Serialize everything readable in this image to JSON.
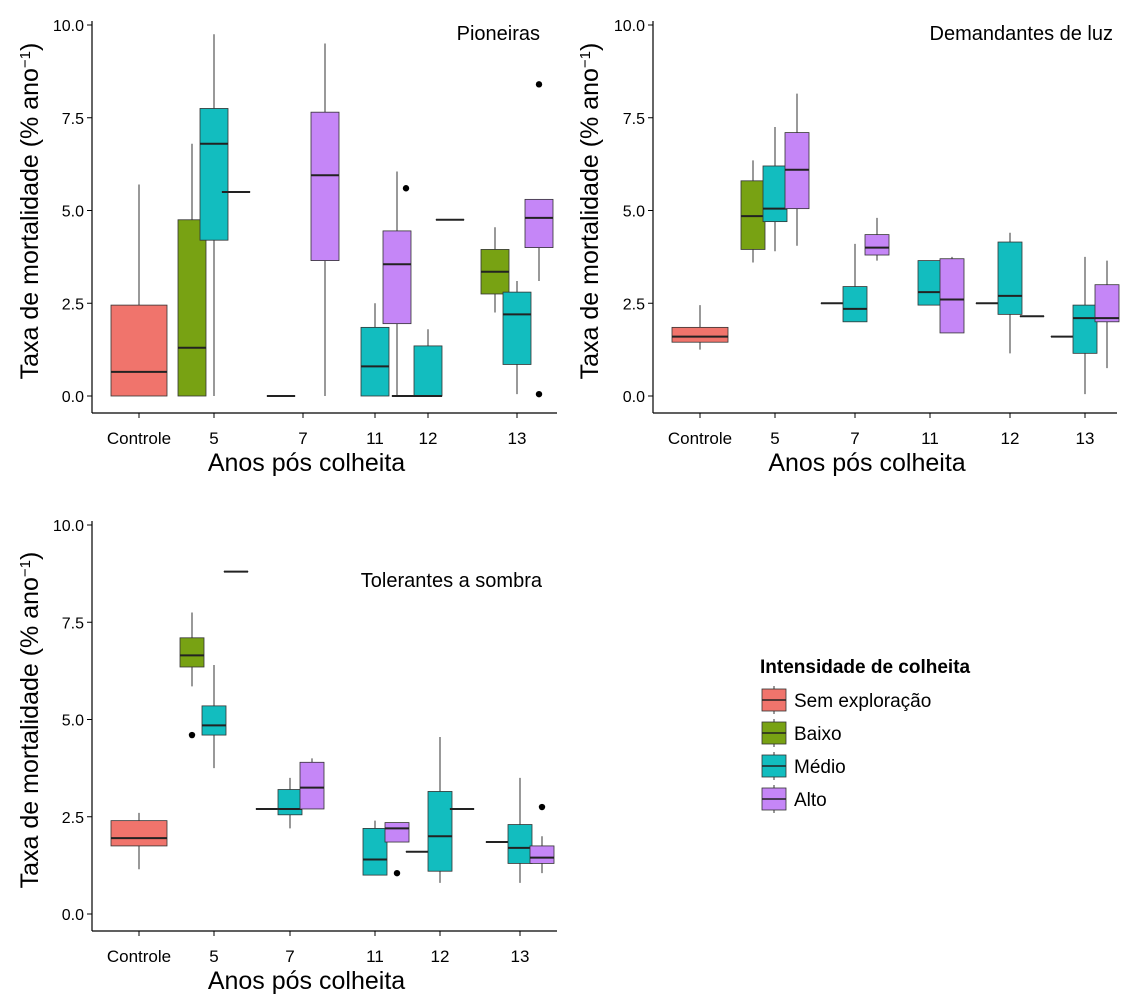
{
  "colors": {
    "Sem exploração": "#F0746C",
    "Baixo": "#78A213",
    "Médio": "#12BDBF",
    "Alto": "#C586F7"
  },
  "legend": {
    "title": "Intensidade de colheita",
    "items": [
      "Sem exploração",
      "Baixo",
      "Médio",
      "Alto"
    ]
  },
  "chart_data": [
    {
      "type": "box",
      "title": "Pioneiras",
      "xlabel": "Anos pós colheita",
      "ylabel": "Taxa de mortalidade (% ano-1)",
      "ylim": [
        0,
        10
      ],
      "yticks": [
        "0.0",
        "2.5",
        "5.0",
        "7.5",
        "10.0"
      ],
      "categories": [
        "Controle",
        "5",
        "7",
        "11",
        "12",
        "13"
      ],
      "boxes": [
        {
          "cat": 0,
          "group": "Sem exploração",
          "min": 0,
          "q1": 0,
          "median": 0.65,
          "q3": 2.45,
          "max": 5.7,
          "outliers": []
        },
        {
          "cat": 1,
          "group": "Baixo",
          "min": 0,
          "q1": 0,
          "median": 1.3,
          "q3": 4.75,
          "max": 6.8,
          "outliers": []
        },
        {
          "cat": 1,
          "group": "Médio",
          "min": 0,
          "q1": 4.2,
          "median": 6.8,
          "q3": 7.75,
          "max": 9.75,
          "outliers": []
        },
        {
          "cat": 1,
          "group": "Alto",
          "min": 5.5,
          "q1": 5.5,
          "median": 5.5,
          "q3": 5.5,
          "max": 5.5,
          "outliers": []
        },
        {
          "cat": 2,
          "group": "Baixo",
          "min": 0,
          "q1": 0,
          "median": 0,
          "q3": 0,
          "max": 0,
          "outliers": []
        },
        {
          "cat": 2,
          "group": "Alto",
          "min": 0,
          "q1": 3.65,
          "median": 5.95,
          "q3": 7.65,
          "max": 9.5,
          "outliers": []
        },
        {
          "cat": 3,
          "group": "Médio",
          "min": 0,
          "q1": 0,
          "median": 0.8,
          "q3": 1.85,
          "max": 2.5,
          "outliers": []
        },
        {
          "cat": 3,
          "group": "Alto",
          "min": 0,
          "q1": 1.95,
          "median": 3.55,
          "q3": 4.45,
          "max": 6.05,
          "outliers": []
        },
        {
          "cat": 4,
          "group": "Baixo",
          "min": 0,
          "q1": 0,
          "median": 0,
          "q3": 0,
          "max": 0,
          "outliers": [
            5.6
          ]
        },
        {
          "cat": 4,
          "group": "Médio",
          "min": 0,
          "q1": 0,
          "median": 0,
          "q3": 1.35,
          "max": 1.8,
          "outliers": []
        },
        {
          "cat": 4,
          "group": "Alto",
          "min": 4.75,
          "q1": 4.75,
          "median": 4.75,
          "q3": 4.75,
          "max": 4.75,
          "outliers": []
        },
        {
          "cat": 5,
          "group": "Baixo",
          "min": 2.25,
          "q1": 2.75,
          "median": 3.35,
          "q3": 3.95,
          "max": 4.55,
          "outliers": []
        },
        {
          "cat": 5,
          "group": "Médio",
          "min": 0.05,
          "q1": 0.85,
          "median": 2.2,
          "q3": 2.8,
          "max": 3.1,
          "outliers": []
        },
        {
          "cat": 5,
          "group": "Alto",
          "min": 3.1,
          "q1": 4.0,
          "median": 4.8,
          "q3": 5.3,
          "max": 5.3,
          "outliers": [
            8.4,
            0.05
          ]
        }
      ]
    },
    {
      "type": "box",
      "title": "Demandantes  de luz",
      "xlabel": "Anos pós colheita",
      "ylabel": "Taxa de mortalidade (% ano-1)",
      "ylim": [
        0,
        10
      ],
      "yticks": [
        "0.0",
        "2.5",
        "5.0",
        "7.5",
        "10.0"
      ],
      "categories": [
        "Controle",
        "5",
        "7",
        "11",
        "12",
        "13"
      ],
      "boxes": [
        {
          "cat": 0,
          "group": "Sem exploração",
          "min": 1.25,
          "q1": 1.45,
          "median": 1.6,
          "q3": 1.85,
          "max": 2.45,
          "outliers": []
        },
        {
          "cat": 1,
          "group": "Baixo",
          "min": 3.6,
          "q1": 3.95,
          "median": 4.85,
          "q3": 5.8,
          "max": 6.35,
          "outliers": []
        },
        {
          "cat": 1,
          "group": "Médio",
          "min": 3.9,
          "q1": 4.7,
          "median": 5.05,
          "q3": 6.2,
          "max": 7.25,
          "outliers": []
        },
        {
          "cat": 1,
          "group": "Alto",
          "min": 4.05,
          "q1": 5.05,
          "median": 6.1,
          "q3": 7.1,
          "max": 8.15,
          "outliers": []
        },
        {
          "cat": 2,
          "group": "Baixo",
          "min": 2.5,
          "q1": 2.5,
          "median": 2.5,
          "q3": 2.5,
          "max": 2.5,
          "outliers": []
        },
        {
          "cat": 2,
          "group": "Médio",
          "min": 2.0,
          "q1": 2.0,
          "median": 2.35,
          "q3": 2.95,
          "max": 4.1,
          "outliers": []
        },
        {
          "cat": 2,
          "group": "Alto",
          "min": 3.65,
          "q1": 3.8,
          "median": 4.0,
          "q3": 4.35,
          "max": 4.8,
          "outliers": []
        },
        {
          "cat": 3,
          "group": "Médio",
          "min": 2.45,
          "q1": 2.45,
          "median": 2.8,
          "q3": 3.65,
          "max": 3.65,
          "outliers": []
        },
        {
          "cat": 3,
          "group": "Alto",
          "min": 1.7,
          "q1": 1.7,
          "median": 2.6,
          "q3": 3.7,
          "max": 3.75,
          "outliers": []
        },
        {
          "cat": 4,
          "group": "Baixo",
          "min": 2.5,
          "q1": 2.5,
          "median": 2.5,
          "q3": 2.5,
          "max": 2.5,
          "outliers": []
        },
        {
          "cat": 4,
          "group": "Médio",
          "min": 1.15,
          "q1": 2.2,
          "median": 2.7,
          "q3": 4.15,
          "max": 4.4,
          "outliers": []
        },
        {
          "cat": 4,
          "group": "Alto",
          "min": 2.15,
          "q1": 2.15,
          "median": 2.15,
          "q3": 2.15,
          "max": 2.15,
          "outliers": []
        },
        {
          "cat": 5,
          "group": "Baixo",
          "min": 1.6,
          "q1": 1.6,
          "median": 1.6,
          "q3": 1.6,
          "max": 1.6,
          "outliers": []
        },
        {
          "cat": 5,
          "group": "Médio",
          "min": 0.05,
          "q1": 1.15,
          "median": 2.1,
          "q3": 2.45,
          "max": 3.75,
          "outliers": []
        },
        {
          "cat": 5,
          "group": "Alto",
          "min": 0.75,
          "q1": 2.0,
          "median": 2.1,
          "q3": 3.0,
          "max": 3.65,
          "outliers": []
        }
      ]
    },
    {
      "type": "box",
      "title": "Tolerantes a sombra",
      "xlabel": "Anos pós colheita",
      "ylabel": "Taxa de mortalidade (% ano-1)",
      "ylim": [
        0,
        10
      ],
      "yticks": [
        "0.0",
        "2.5",
        "5.0",
        "7.5",
        "10.0"
      ],
      "categories": [
        "Controle",
        "5",
        "7",
        "11",
        "12",
        "13"
      ],
      "boxes": [
        {
          "cat": 0,
          "group": "Sem exploração",
          "min": 1.15,
          "q1": 1.75,
          "median": 1.95,
          "q3": 2.4,
          "max": 2.6,
          "outliers": []
        },
        {
          "cat": 1,
          "group": "Baixo",
          "min": 5.85,
          "q1": 6.35,
          "median": 6.65,
          "q3": 7.1,
          "max": 7.75,
          "outliers": [
            4.6
          ]
        },
        {
          "cat": 1,
          "group": "Médio",
          "min": 3.75,
          "q1": 4.6,
          "median": 4.85,
          "q3": 5.35,
          "max": 6.4,
          "outliers": []
        },
        {
          "cat": 1,
          "group": "Alto",
          "min": 8.8,
          "q1": 8.8,
          "median": 8.8,
          "q3": 8.8,
          "max": 8.8,
          "outliers": []
        },
        {
          "cat": 2,
          "group": "Baixo",
          "min": 2.7,
          "q1": 2.7,
          "median": 2.7,
          "q3": 2.7,
          "max": 2.7,
          "outliers": []
        },
        {
          "cat": 2,
          "group": "Médio",
          "min": 2.2,
          "q1": 2.55,
          "median": 2.7,
          "q3": 3.2,
          "max": 3.5,
          "outliers": []
        },
        {
          "cat": 2,
          "group": "Alto",
          "min": 2.7,
          "q1": 2.7,
          "median": 3.25,
          "q3": 3.9,
          "max": 4.0,
          "outliers": []
        },
        {
          "cat": 3,
          "group": "Médio",
          "min": 1.0,
          "q1": 1.0,
          "median": 1.4,
          "q3": 2.2,
          "max": 2.4,
          "outliers": []
        },
        {
          "cat": 3,
          "group": "Alto",
          "min": 1.85,
          "q1": 1.85,
          "median": 2.2,
          "q3": 2.35,
          "max": 2.35,
          "outliers": [
            1.05
          ]
        },
        {
          "cat": 4,
          "group": "Baixo",
          "min": 1.6,
          "q1": 1.6,
          "median": 1.6,
          "q3": 1.6,
          "max": 1.6,
          "outliers": []
        },
        {
          "cat": 4,
          "group": "Médio",
          "min": 0.8,
          "q1": 1.1,
          "median": 2.0,
          "q3": 3.15,
          "max": 4.55,
          "outliers": []
        },
        {
          "cat": 4,
          "group": "Alto",
          "min": 2.7,
          "q1": 2.7,
          "median": 2.7,
          "q3": 2.7,
          "max": 2.7,
          "outliers": []
        },
        {
          "cat": 5,
          "group": "Baixo",
          "min": 1.85,
          "q1": 1.85,
          "median": 1.85,
          "q3": 1.85,
          "max": 1.85,
          "outliers": []
        },
        {
          "cat": 5,
          "group": "Médio",
          "min": 0.8,
          "q1": 1.3,
          "median": 1.7,
          "q3": 2.3,
          "max": 3.5,
          "outliers": []
        },
        {
          "cat": 5,
          "group": "Alto",
          "min": 1.05,
          "q1": 1.3,
          "median": 1.45,
          "q3": 1.75,
          "max": 2.0,
          "outliers": [
            2.75
          ]
        }
      ]
    }
  ]
}
